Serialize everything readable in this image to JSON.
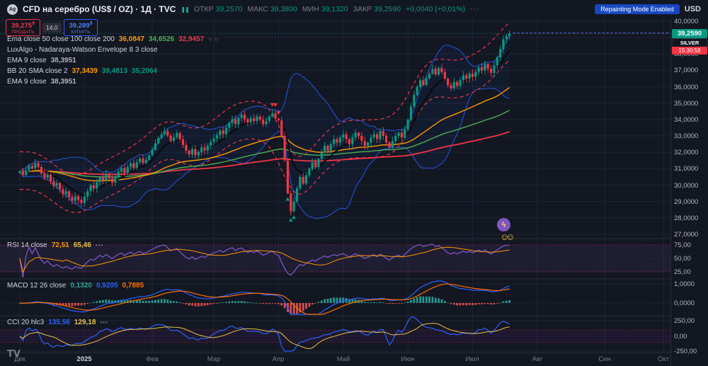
{
  "header": {
    "title": "CFD на серебро (US$ / OZ) · 1Д · TVC",
    "market_icon": "❚❚",
    "ohlc": [
      {
        "label": "ОТКР",
        "value": "39,2570"
      },
      {
        "label": "МАКС",
        "value": "39,3800"
      },
      {
        "label": "МИН",
        "value": "39,1320"
      },
      {
        "label": "ЗАКР",
        "value": "39,2590"
      }
    ],
    "change": "+0,0040 (+0,01%)",
    "more": "···",
    "repainting_badge": "Repainting Mode Enabled",
    "currency": "USD"
  },
  "trade": {
    "sell": {
      "price": "39,275",
      "sup": "9",
      "num": 39.2759,
      "label": "ПРОДАТЬ"
    },
    "spread": "14,0",
    "buy": {
      "price": "39,289",
      "sup": "9",
      "num": 39.2899,
      "label": "КУПИТЬ"
    }
  },
  "legend": {
    "main": [
      {
        "name": "Ema close 50 close 100 close 200",
        "values": [
          {
            "t": "36,0847",
            "c": "#ff9800"
          },
          {
            "t": "34,6526",
            "c": "#4caf50"
          },
          {
            "t": "32,9457",
            "c": "#f23645"
          }
        ],
        "extra": "○ ○"
      },
      {
        "name": "LuxAlgo - Nadaraya-Watson Envelope 8 3 close",
        "values": []
      },
      {
        "name": "EMA 9 close",
        "values": [
          {
            "t": "38,3951",
            "c": "#b2b5be"
          }
        ]
      },
      {
        "name": "BB 20 SMA close 2",
        "values": [
          {
            "t": "37,3439",
            "c": "#ff9800"
          },
          {
            "t": "39,4813",
            "c": "#089981"
          },
          {
            "t": "35,2064",
            "c": "#089981"
          }
        ]
      },
      {
        "name": "EMA 9 close",
        "values": [
          {
            "t": "38,3951",
            "c": "#b2b5be"
          }
        ]
      }
    ],
    "rsi": {
      "name": "RSI 14 close",
      "values": [
        {
          "t": "72,51",
          "c": "#ff9800"
        },
        {
          "t": "65,46",
          "c": "#e8c24a"
        }
      ],
      "extra": "•••"
    },
    "macd": {
      "name": "MACD 12 26 close",
      "values": [
        {
          "t": "0,1320",
          "c": "#26a69a"
        },
        {
          "t": "0,9205",
          "c": "#2962ff"
        },
        {
          "t": "0,7885",
          "c": "#ff6d00"
        }
      ]
    },
    "cci": {
      "name": "CCI 20 hlc3",
      "values": [
        {
          "t": "135,56",
          "c": "#2962ff"
        },
        {
          "t": "129,18",
          "c": "#e8c24a"
        }
      ],
      "extra": "•••"
    }
  },
  "badges": {
    "symbol": "SILVER",
    "countdown": "15:30:58"
  },
  "floaters": {
    "boost_icon": "ϟ",
    "reactions": "☺☺"
  },
  "footer": {
    "logo": "TV"
  },
  "colors": {
    "up": "#089981",
    "down": "#f23645",
    "ema50": "#ff9800",
    "ema100": "#4caf50",
    "ema200": "#f23645",
    "ema9": "#0b0b0b",
    "bb": "#2962ff",
    "nw": "#f23645",
    "rsi": "#7e57c2",
    "rsi_ma": "#ff9800",
    "macd": "#2962ff",
    "signal": "#ff6d00",
    "hist_pos": "#26a69a",
    "hist_neg": "#ef5350",
    "cci": "#2962ff",
    "cci_ma": "#e8c24a",
    "badge_green": "#089981"
  },
  "chart_data": {
    "type": "candlestick",
    "symbol": "TVC:SILVER CFD (US$/OZ)",
    "timeframe": "1D",
    "price_range": [
      27,
      40
    ],
    "last_price": {
      "value": 39.259,
      "text": "39,2590"
    },
    "closes": [
      30.85,
      30.62,
      30.9,
      31.18,
      31.02,
      31.35,
      31.1,
      30.72,
      30.45,
      30.63,
      30.24,
      29.95,
      30.12,
      29.74,
      29.45,
      29.62,
      29.28,
      29.05,
      29.32,
      29.1,
      28.92,
      29.3,
      29.62,
      29.98,
      29.8,
      30.18,
      30.52,
      30.3,
      30.7,
      30.42,
      30.15,
      30.5,
      30.82,
      31.05,
      30.74,
      31.12,
      31.33,
      31.05,
      31.4,
      31.62,
      31.35,
      31.55,
      31.82,
      32.15,
      32.55,
      32.88,
      33.1,
      33.3,
      33.02,
      32.7,
      32.92,
      33.18,
      32.8,
      32.45,
      32.1,
      31.88,
      32.2,
      31.82,
      32.02,
      32.3,
      32.12,
      32.42,
      32.65,
      32.85,
      33.05,
      33.32,
      33.12,
      33.5,
      33.8,
      34.02,
      33.72,
      34.1,
      34.3,
      34.02,
      33.82,
      34.08,
      33.9,
      34.18,
      34.0,
      33.72,
      33.92,
      34.2,
      34.38,
      34.05,
      33.95,
      33.0,
      31.5,
      29.5,
      28.4,
      29.0,
      29.8,
      30.5,
      30.1,
      30.6,
      31.0,
      31.4,
      31.1,
      31.6,
      32.0,
      32.4,
      32.1,
      32.5,
      32.8,
      32.6,
      32.9,
      33.1,
      32.8,
      32.5,
      32.9,
      33.2,
      33.0,
      32.7,
      32.4,
      32.6,
      32.9,
      33.1,
      32.8,
      33.3,
      33.0,
      32.6,
      32.3,
      32.7,
      33.0,
      33.2,
      32.9,
      33.4,
      34.0,
      34.8,
      35.5,
      36.0,
      36.4,
      36.1,
      36.5,
      36.8,
      37.1,
      36.75,
      37.15,
      36.9,
      36.5,
      36.1,
      35.9,
      36.3,
      36.05,
      36.4,
      36.7,
      36.5,
      36.8,
      36.6,
      36.9,
      37.2,
      37.0,
      37.4,
      37.1,
      36.85,
      37.3,
      37.8,
      38.3,
      38.9,
      39.1,
      39.26
    ],
    "month_ticks": [
      {
        "i": 0,
        "label": "Дек"
      },
      {
        "i": 21,
        "label": "2025",
        "year": true
      },
      {
        "i": 43,
        "label": "Фев"
      },
      {
        "i": 63,
        "label": "Мар"
      },
      {
        "i": 84,
        "label": "Апр"
      },
      {
        "i": 105,
        "label": "Май"
      },
      {
        "i": 126,
        "label": "Июн"
      },
      {
        "i": 147,
        "label": "Июл"
      },
      {
        "i": 168,
        "label": "Авг"
      },
      {
        "i": 190,
        "label": "Сен"
      },
      {
        "i": 209,
        "label": "Окт"
      }
    ],
    "price_axis": [
      {
        "v": 40,
        "t": "40,0000"
      },
      {
        "v": 39,
        "t": "39,0000"
      },
      {
        "v": 38,
        "t": "38,0000"
      },
      {
        "v": 37,
        "t": "37,0000"
      },
      {
        "v": 36,
        "t": "36,0000"
      },
      {
        "v": 35,
        "t": "35,0000"
      },
      {
        "v": 34,
        "t": "34,0000"
      },
      {
        "v": 33,
        "t": "33,0000"
      },
      {
        "v": 32,
        "t": "32,0000"
      },
      {
        "v": 31,
        "t": "31,0000"
      },
      {
        "v": 30,
        "t": "30,0000"
      },
      {
        "v": 29,
        "t": "29,0000"
      },
      {
        "v": 28,
        "t": "28,0000"
      },
      {
        "v": 27,
        "t": "27,0000"
      }
    ],
    "panes": {
      "rsi": {
        "levels": [
          {
            "v": 75,
            "t": "75,00"
          },
          {
            "v": 50,
            "t": "50,00"
          },
          {
            "v": 25,
            "t": "25,00"
          }
        ]
      },
      "macd": {
        "levels": [
          {
            "v": 1,
            "t": "1,0000"
          },
          {
            "v": 0,
            "t": "0,0000"
          }
        ]
      },
      "cci": {
        "levels": [
          {
            "v": 250,
            "t": "250,00"
          },
          {
            "v": 0,
            "t": "0,00"
          },
          {
            "v": -250,
            "t": "-250,00"
          }
        ]
      }
    }
  }
}
